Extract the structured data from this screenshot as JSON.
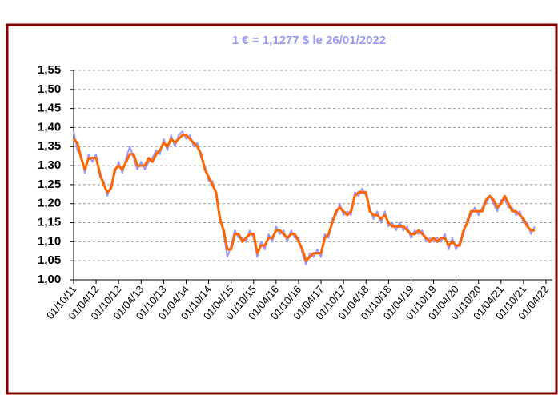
{
  "chart_data": {
    "type": "line",
    "title": "1 € = 1,1277 $ le 26/01/2022",
    "title_color": "#9999ff",
    "categories": [
      "01/10/11",
      null,
      null,
      null,
      null,
      null,
      "01/04/12",
      null,
      null,
      null,
      null,
      null,
      "01/10/12",
      null,
      null,
      null,
      null,
      null,
      "01/04/13",
      null,
      null,
      null,
      null,
      null,
      "01/10/13",
      null,
      null,
      null,
      null,
      null,
      "01/04/14",
      null,
      null,
      null,
      null,
      null,
      "01/10/14",
      null,
      null,
      null,
      null,
      null,
      "01/04/15",
      null,
      null,
      null,
      null,
      null,
      "01/10/15",
      null,
      null,
      null,
      null,
      null,
      "01/04/16",
      null,
      null,
      null,
      null,
      null,
      "01/10/16",
      null,
      null,
      null,
      null,
      null,
      "01/04/17",
      null,
      null,
      null,
      null,
      null,
      "01/10/17",
      null,
      null,
      null,
      null,
      null,
      "01/04/18",
      null,
      null,
      null,
      null,
      null,
      "01/10/18",
      null,
      null,
      null,
      null,
      null,
      "01/04/19",
      null,
      null,
      null,
      null,
      null,
      "01/10/19",
      null,
      null,
      null,
      null,
      null,
      "01/04/20",
      null,
      null,
      null,
      null,
      null,
      "01/10/20",
      null,
      null,
      null,
      null,
      null,
      "01/04/21",
      null,
      null,
      null,
      null,
      null,
      "01/10/21",
      null,
      null,
      null,
      null,
      null,
      "01/04/22"
    ],
    "series": [
      {
        "color": "#9999ff",
        "width": 2,
        "values": [
          1.39,
          1.34,
          1.33,
          1.28,
          1.33,
          1.31,
          1.33,
          1.27,
          1.26,
          1.22,
          1.25,
          1.28,
          1.31,
          1.28,
          1.32,
          1.35,
          1.32,
          1.29,
          1.31,
          1.29,
          1.31,
          1.32,
          1.34,
          1.33,
          1.37,
          1.34,
          1.38,
          1.35,
          1.38,
          1.39,
          1.37,
          1.38,
          1.35,
          1.36,
          1.32,
          1.3,
          1.26,
          1.26,
          1.22,
          1.17,
          1.12,
          1.06,
          1.09,
          1.13,
          1.11,
          1.11,
          1.1,
          1.13,
          1.11,
          1.06,
          1.1,
          1.08,
          1.12,
          1.1,
          1.14,
          1.12,
          1.13,
          1.1,
          1.13,
          1.11,
          1.11,
          1.07,
          1.04,
          1.07,
          1.06,
          1.08,
          1.06,
          1.12,
          1.11,
          1.16,
          1.17,
          1.2,
          1.17,
          1.18,
          1.17,
          1.23,
          1.22,
          1.24,
          1.22,
          1.19,
          1.16,
          1.18,
          1.15,
          1.18,
          1.14,
          1.15,
          1.13,
          1.15,
          1.13,
          1.14,
          1.11,
          1.13,
          1.12,
          1.13,
          1.1,
          1.11,
          1.1,
          1.11,
          1.1,
          1.12,
          1.08,
          1.11,
          1.08,
          1.1,
          1.12,
          1.16,
          1.17,
          1.19,
          1.17,
          1.19,
          1.2,
          1.22,
          1.2,
          1.18,
          1.21,
          1.21,
          1.19,
          1.19,
          1.17,
          1.18,
          1.15,
          1.15,
          1.12,
          1.14,
          null,
          null,
          null
        ]
      },
      {
        "color": "#ff6600",
        "width": 3,
        "values": [
          1.37,
          1.36,
          1.32,
          1.29,
          1.32,
          1.32,
          1.32,
          1.28,
          1.25,
          1.23,
          1.24,
          1.29,
          1.3,
          1.29,
          1.31,
          1.33,
          1.33,
          1.3,
          1.3,
          1.3,
          1.32,
          1.31,
          1.33,
          1.34,
          1.36,
          1.35,
          1.37,
          1.36,
          1.37,
          1.38,
          1.38,
          1.37,
          1.36,
          1.35,
          1.33,
          1.29,
          1.27,
          1.25,
          1.23,
          1.16,
          1.13,
          1.08,
          1.08,
          1.12,
          1.12,
          1.1,
          1.11,
          1.12,
          1.12,
          1.07,
          1.09,
          1.09,
          1.11,
          1.11,
          1.13,
          1.13,
          1.12,
          1.11,
          1.12,
          1.12,
          1.1,
          1.08,
          1.05,
          1.06,
          1.07,
          1.07,
          1.07,
          1.11,
          1.12,
          1.15,
          1.18,
          1.19,
          1.18,
          1.17,
          1.18,
          1.22,
          1.23,
          1.23,
          1.23,
          1.18,
          1.17,
          1.17,
          1.16,
          1.17,
          1.15,
          1.14,
          1.14,
          1.14,
          1.14,
          1.13,
          1.12,
          1.12,
          1.13,
          1.12,
          1.11,
          1.1,
          1.11,
          1.1,
          1.11,
          1.11,
          1.09,
          1.1,
          1.09,
          1.09,
          1.13,
          1.15,
          1.18,
          1.18,
          1.18,
          1.18,
          1.21,
          1.22,
          1.21,
          1.19,
          1.2,
          1.22,
          1.2,
          1.18,
          1.18,
          1.17,
          1.16,
          1.14,
          1.13,
          1.13,
          null,
          null,
          null
        ]
      }
    ],
    "ylim": [
      1.0,
      1.55
    ],
    "yticks": [
      {
        "value": 1.0,
        "label": "1,00"
      },
      {
        "value": 1.05,
        "label": "1,05"
      },
      {
        "value": 1.1,
        "label": "1,10"
      },
      {
        "value": 1.15,
        "label": "1,15"
      },
      {
        "value": 1.2,
        "label": "1,20"
      },
      {
        "value": 1.25,
        "label": "1,25"
      },
      {
        "value": 1.3,
        "label": "1,30"
      },
      {
        "value": 1.35,
        "label": "1,35"
      },
      {
        "value": 1.4,
        "label": "1,40"
      },
      {
        "value": 1.45,
        "label": "1,45"
      },
      {
        "value": 1.5,
        "label": "1,50"
      },
      {
        "value": 1.55,
        "label": "1,55"
      }
    ],
    "grid": true
  }
}
